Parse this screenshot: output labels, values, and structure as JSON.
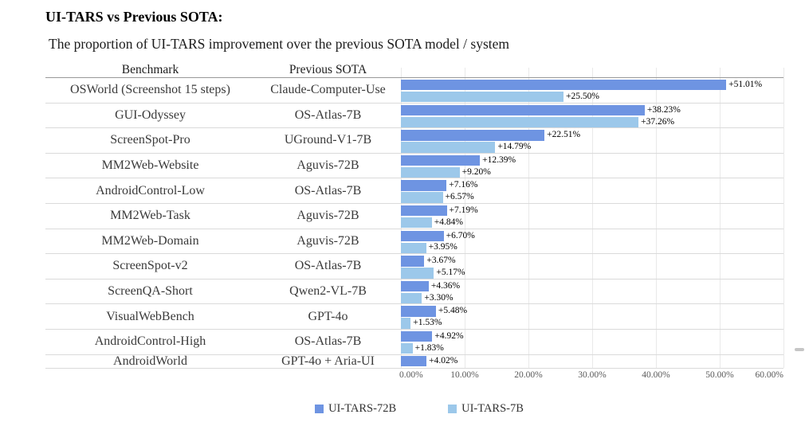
{
  "page": {
    "title": "UI-TARS vs Previous SOTA:",
    "subtitle": "The proportion of UI-TARS improvement over the previous SOTA model / system"
  },
  "table": {
    "benchmark_header": "Benchmark",
    "previous_sota_header": "Previous SOTA"
  },
  "chart_data": {
    "type": "bar",
    "orientation": "horizontal",
    "title": "UI-TARS vs Previous SOTA:",
    "subtitle": "The proportion of UI-TARS improvement over the previous SOTA model / system",
    "xlim": [
      0,
      60
    ],
    "x_ticks": [
      "0.00%",
      "10.00%",
      "20.00%",
      "30.00%",
      "40.00%",
      "50.00%",
      "60.00%"
    ],
    "grid": true,
    "legend_position": "bottom",
    "categories": [
      "OSWorld (Screenshot 15 steps)",
      "GUI-Odyssey",
      "ScreenSpot-Pro",
      "MM2Web-Website",
      "AndroidControl-Low",
      "MM2Web-Task",
      "MM2Web-Domain",
      "ScreenSpot-v2",
      "ScreenQA-Short",
      "VisualWebBench",
      "AndroidControl-High",
      "AndroidWorld"
    ],
    "previous_sota": [
      "Claude-Computer-Use",
      "OS-Atlas-7B",
      "UGround-V1-7B",
      "Aguvis-72B",
      "OS-Atlas-7B",
      "Aguvis-72B",
      "Aguvis-72B",
      "OS-Atlas-7B",
      "Qwen2-VL-7B",
      "GPT-4o",
      "OS-Atlas-7B",
      "GPT-4o + Aria-UI"
    ],
    "series": [
      {
        "name": "UI-TARS-72B",
        "color": "#6E94E2",
        "values": [
          51.01,
          38.23,
          22.51,
          12.39,
          7.16,
          7.19,
          6.7,
          3.67,
          4.36,
          5.48,
          4.92,
          4.02
        ]
      },
      {
        "name": "UI-TARS-7B",
        "color": "#9CC8EA",
        "values": [
          25.5,
          37.26,
          14.79,
          9.2,
          6.57,
          4.84,
          3.95,
          5.17,
          3.3,
          1.53,
          1.83,
          null
        ]
      }
    ],
    "data_label_prefix": "+",
    "data_label_suffix": "%"
  },
  "colors": {
    "gridline": "#e9e9e9",
    "row_separator": "#dadada",
    "header_rule": "#999999",
    "axis_text": "#595959"
  }
}
